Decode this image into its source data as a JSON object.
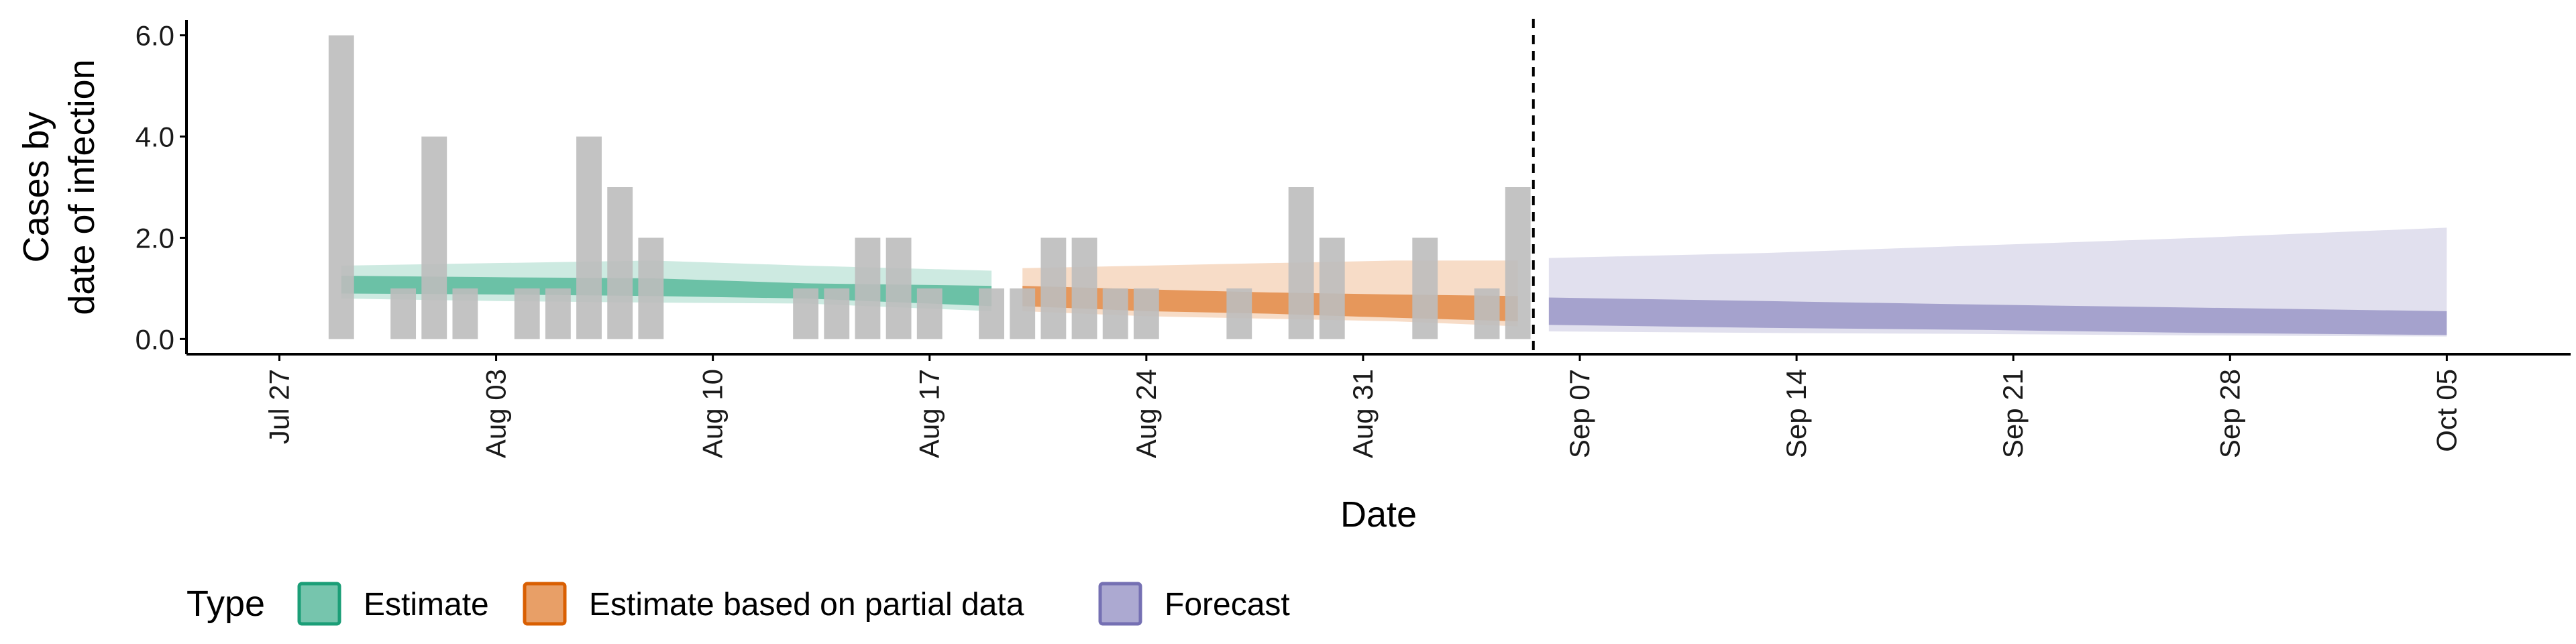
{
  "chart_data": {
    "type": "bar",
    "xlabel": "Date",
    "ylabel_lines": [
      "Cases by",
      "date of infection"
    ],
    "x_date_range": [
      "2025-07-24",
      "2025-10-09"
    ],
    "ylim": [
      -0.3,
      6.3
    ],
    "y_ticks": [
      0,
      2,
      4,
      6
    ],
    "y_tick_labels": [
      "0.0",
      "2.0",
      "4.0",
      "6.0"
    ],
    "x_ticks": [
      "2025-07-27",
      "2025-08-03",
      "2025-08-10",
      "2025-08-17",
      "2025-08-24",
      "2025-08-31",
      "2025-09-07",
      "2025-09-14",
      "2025-09-21",
      "2025-09-28",
      "2025-10-05"
    ],
    "x_tick_labels": [
      "Jul 27",
      "Aug 03",
      "Aug 10",
      "Aug 17",
      "Aug 24",
      "Aug 31",
      "Sep 07",
      "Sep 14",
      "Sep 21",
      "Sep 28",
      "Oct 05"
    ],
    "bar_color": "#bdbdbd",
    "observed_cases": [
      {
        "date": "2025-07-29",
        "value": 6
      },
      {
        "date": "2025-07-30",
        "value": 0
      },
      {
        "date": "2025-07-31",
        "value": 1
      },
      {
        "date": "2025-08-01",
        "value": 4
      },
      {
        "date": "2025-08-02",
        "value": 1
      },
      {
        "date": "2025-08-03",
        "value": 0
      },
      {
        "date": "2025-08-04",
        "value": 1
      },
      {
        "date": "2025-08-05",
        "value": 1
      },
      {
        "date": "2025-08-06",
        "value": 4
      },
      {
        "date": "2025-08-07",
        "value": 3
      },
      {
        "date": "2025-08-08",
        "value": 2
      },
      {
        "date": "2025-08-09",
        "value": 0
      },
      {
        "date": "2025-08-10",
        "value": 0
      },
      {
        "date": "2025-08-11",
        "value": 0
      },
      {
        "date": "2025-08-12",
        "value": 0
      },
      {
        "date": "2025-08-13",
        "value": 1
      },
      {
        "date": "2025-08-14",
        "value": 1
      },
      {
        "date": "2025-08-15",
        "value": 2
      },
      {
        "date": "2025-08-16",
        "value": 2
      },
      {
        "date": "2025-08-17",
        "value": 1
      },
      {
        "date": "2025-08-18",
        "value": 0
      },
      {
        "date": "2025-08-19",
        "value": 1
      },
      {
        "date": "2025-08-20",
        "value": 1
      },
      {
        "date": "2025-08-21",
        "value": 2
      },
      {
        "date": "2025-08-22",
        "value": 2
      },
      {
        "date": "2025-08-23",
        "value": 1
      },
      {
        "date": "2025-08-24",
        "value": 1
      },
      {
        "date": "2025-08-25",
        "value": 0
      },
      {
        "date": "2025-08-26",
        "value": 0
      },
      {
        "date": "2025-08-27",
        "value": 1
      },
      {
        "date": "2025-08-28",
        "value": 0
      },
      {
        "date": "2025-08-29",
        "value": 3
      },
      {
        "date": "2025-08-30",
        "value": 2
      },
      {
        "date": "2025-08-31",
        "value": 0
      },
      {
        "date": "2025-09-01",
        "value": 0
      },
      {
        "date": "2025-09-02",
        "value": 2
      },
      {
        "date": "2025-09-03",
        "value": 0
      },
      {
        "date": "2025-09-04",
        "value": 1
      },
      {
        "date": "2025-09-05",
        "value": 3
      }
    ],
    "series": [
      {
        "name": "Estimate",
        "color": "#1b9e77",
        "x": [
          "2025-07-29",
          "2025-08-03",
          "2025-08-08",
          "2025-08-13",
          "2025-08-19"
        ],
        "outer_low": [
          0.8,
          0.75,
          0.72,
          0.7,
          0.55
        ],
        "outer_high": [
          1.45,
          1.5,
          1.55,
          1.45,
          1.35
        ],
        "inner_low": [
          0.9,
          0.88,
          0.85,
          0.8,
          0.65
        ],
        "inner_high": [
          1.25,
          1.22,
          1.2,
          1.1,
          1.05
        ]
      },
      {
        "name": "Estimate based on partial data",
        "color": "#d95f02",
        "x": [
          "2025-08-20",
          "2025-08-24",
          "2025-08-28",
          "2025-09-01",
          "2025-09-05"
        ],
        "outer_low": [
          0.55,
          0.45,
          0.4,
          0.35,
          0.25
        ],
        "outer_high": [
          1.4,
          1.45,
          1.5,
          1.55,
          1.55
        ],
        "inner_low": [
          0.65,
          0.55,
          0.5,
          0.42,
          0.35
        ],
        "inner_high": [
          1.05,
          0.98,
          0.92,
          0.88,
          0.85
        ]
      },
      {
        "name": "Forecast",
        "color": "#7570b3",
        "x": [
          "2025-09-06",
          "2025-09-13",
          "2025-09-20",
          "2025-09-27",
          "2025-10-05"
        ],
        "outer_low": [
          0.15,
          0.12,
          0.1,
          0.07,
          0.05
        ],
        "outer_high": [
          1.6,
          1.7,
          1.85,
          2.0,
          2.2
        ],
        "inner_low": [
          0.28,
          0.22,
          0.18,
          0.12,
          0.08
        ],
        "inner_high": [
          0.82,
          0.75,
          0.68,
          0.62,
          0.55
        ]
      }
    ],
    "vline_date": "2025-09-05",
    "legend": {
      "title": "Type",
      "position": "bottom",
      "items": [
        "Estimate",
        "Estimate based on partial data",
        "Forecast"
      ]
    },
    "grid": false
  }
}
